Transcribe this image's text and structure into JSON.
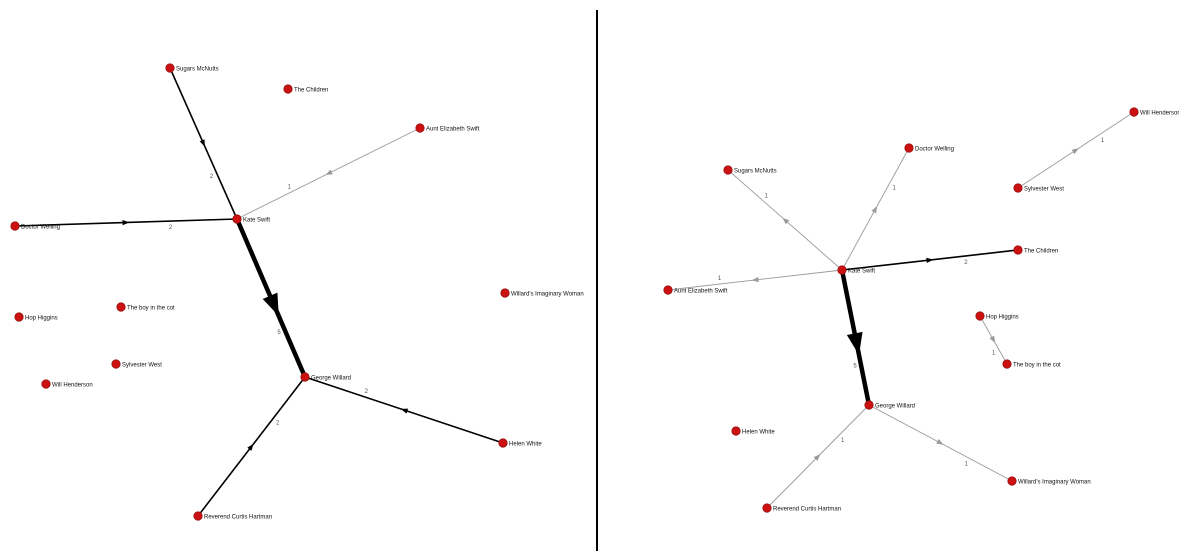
{
  "colors": {
    "node": "#cc1111",
    "node_stroke": "#991111",
    "edge_weak": "#9a9a9a",
    "edge_strong": "#000000",
    "divider": "#000000"
  },
  "left_graph": {
    "nodes": [
      {
        "id": "sugars",
        "label": "Sugars McNutts"
      },
      {
        "id": "children",
        "label": "The Children"
      },
      {
        "id": "aunt",
        "label": "Aunt Elizabeth Swift"
      },
      {
        "id": "doctor",
        "label": "Doctor Welling"
      },
      {
        "id": "kate",
        "label": "Kate Swift"
      },
      {
        "id": "imaginary",
        "label": "Willard's Imaginary Woman"
      },
      {
        "id": "hop",
        "label": "Hop Higgins"
      },
      {
        "id": "boy",
        "label": "The boy in the cot"
      },
      {
        "id": "sylvester",
        "label": "Sylvester West"
      },
      {
        "id": "will",
        "label": "Will Henderson"
      },
      {
        "id": "george",
        "label": "George Willard"
      },
      {
        "id": "helen",
        "label": "Helen White"
      },
      {
        "id": "reverend",
        "label": "Reverend Curtis Hartman"
      }
    ],
    "edges": [
      {
        "source": "sugars",
        "target": "kate",
        "weight": 2
      },
      {
        "source": "aunt",
        "target": "kate",
        "weight": 1
      },
      {
        "source": "doctor",
        "target": "kate",
        "weight": 2
      },
      {
        "source": "kate",
        "target": "george",
        "weight": 5
      },
      {
        "source": "helen",
        "target": "george",
        "weight": 2
      },
      {
        "source": "reverend",
        "target": "george",
        "weight": 2
      }
    ]
  },
  "right_graph": {
    "nodes": [
      {
        "id": "will",
        "label": "Will Henderson"
      },
      {
        "id": "doctor",
        "label": "Doctor Welling"
      },
      {
        "id": "sugars",
        "label": "Sugars McNutts"
      },
      {
        "id": "sylvester",
        "label": "Sylvester West"
      },
      {
        "id": "children",
        "label": "The Children"
      },
      {
        "id": "kate",
        "label": "Kate Swift"
      },
      {
        "id": "aunt",
        "label": "Aunt Elizabeth Swift"
      },
      {
        "id": "hop",
        "label": "Hop Higgins"
      },
      {
        "id": "boy",
        "label": "The boy in the cot"
      },
      {
        "id": "george",
        "label": "George Willard"
      },
      {
        "id": "helen",
        "label": "Helen White"
      },
      {
        "id": "imaginary",
        "label": "Willard's Imaginary Woman"
      },
      {
        "id": "reverend",
        "label": "Reverend Curtis Hartman"
      }
    ],
    "edges": [
      {
        "source": "sylvester",
        "target": "will",
        "weight": 1
      },
      {
        "source": "kate",
        "target": "doctor",
        "weight": 1
      },
      {
        "source": "kate",
        "target": "sugars",
        "weight": 1
      },
      {
        "source": "kate",
        "target": "children",
        "weight": 2
      },
      {
        "source": "kate",
        "target": "aunt",
        "weight": 1
      },
      {
        "source": "hop",
        "target": "boy",
        "weight": 1
      },
      {
        "source": "kate",
        "target": "george",
        "weight": 5
      },
      {
        "source": "george",
        "target": "imaginary",
        "weight": 1
      },
      {
        "source": "reverend",
        "target": "george",
        "weight": 1
      }
    ]
  }
}
